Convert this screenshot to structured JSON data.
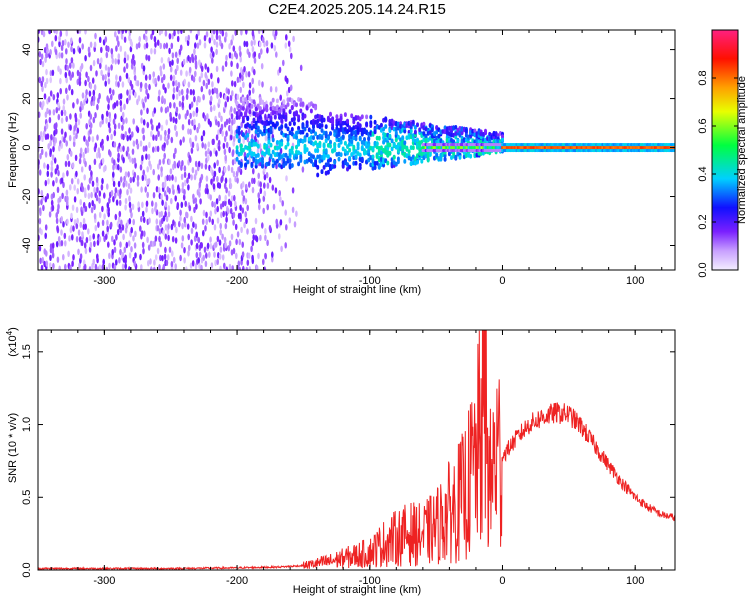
{
  "title": "C2E4.2025.205.14.24.R15",
  "colors": {
    "snr_line": "#ee2222",
    "spectrogram_dots": "#6a00e0",
    "axis": "#000000"
  },
  "colorbar": {
    "label": "Normalized spectral amplitude",
    "ticks": [
      "0.0",
      "0.2",
      "0.4",
      "0.6",
      "0.8"
    ],
    "tick_values": [
      0.0,
      0.2,
      0.4,
      0.6,
      0.8
    ],
    "range": [
      0,
      1
    ],
    "colormap": [
      "#e8e0ff",
      "#8a3cff",
      "#2020ff",
      "#00e0ff",
      "#00ff40",
      "#f0f000",
      "#ff8000",
      "#ff0000",
      "#ff2080"
    ]
  },
  "chart_data": [
    {
      "type": "heatmap",
      "title": "C2E4.2025.205.14.24.R15",
      "xlabel": "Height of straight line (km)",
      "ylabel": "Frequency (Hz)",
      "xlim": [
        -350,
        130
      ],
      "ylim": [
        -50,
        48
      ],
      "x_ticks": [
        -300,
        -200,
        -100,
        0,
        100
      ],
      "x_tick_labels": [
        "-300",
        "-200",
        "-100",
        "0",
        "100"
      ],
      "y_ticks": [
        -40,
        -20,
        0,
        20,
        40
      ],
      "y_tick_labels": [
        "-40",
        "-20",
        "0",
        "20",
        "40"
      ],
      "grid": false,
      "description_of_content": "broadband noise for heights below about -150 km; energy narrows toward 0 Hz as height increases, becoming a single strong line near 0 Hz above about 0 km"
    },
    {
      "type": "line",
      "xlabel": "Height of straight line (km)",
      "ylabel": "SNR (10 * v/v)",
      "y_multiplier_label": "(x10",
      "y_multiplier_exp": "4",
      "y_multiplier_close": ")",
      "xlim": [
        -350,
        130
      ],
      "ylim": [
        0,
        1.65
      ],
      "x_ticks": [
        -300,
        -200,
        -100,
        0,
        100
      ],
      "x_tick_labels": [
        "-300",
        "-200",
        "-100",
        "0",
        "100"
      ],
      "y_ticks": [
        0,
        0.5,
        1.0,
        1.5
      ],
      "y_tick_labels": [
        "0.0",
        "0.5",
        "1.0",
        "1.5"
      ],
      "grid": false,
      "series": [
        {
          "x": [
            -350,
            -300,
            -250,
            -200,
            -170,
            -150,
            -130,
            -110,
            -100,
            -90,
            -80,
            -70,
            -60,
            -50,
            -40,
            -30,
            -25,
            -20,
            -15,
            -13,
            -10,
            -5,
            0,
            10,
            20,
            30,
            40,
            50,
            60,
            70,
            80,
            90,
            100,
            110,
            120,
            130
          ],
          "y": [
            0.01,
            0.01,
            0.01,
            0.015,
            0.02,
            0.03,
            0.06,
            0.1,
            0.12,
            0.18,
            0.22,
            0.25,
            0.24,
            0.3,
            0.4,
            0.5,
            0.6,
            0.75,
            1.0,
            1.3,
            0.55,
            0.8,
            0.78,
            0.9,
            1.0,
            1.05,
            1.08,
            1.07,
            0.98,
            0.85,
            0.72,
            0.6,
            0.5,
            0.43,
            0.38,
            0.36
          ]
        }
      ]
    }
  ]
}
